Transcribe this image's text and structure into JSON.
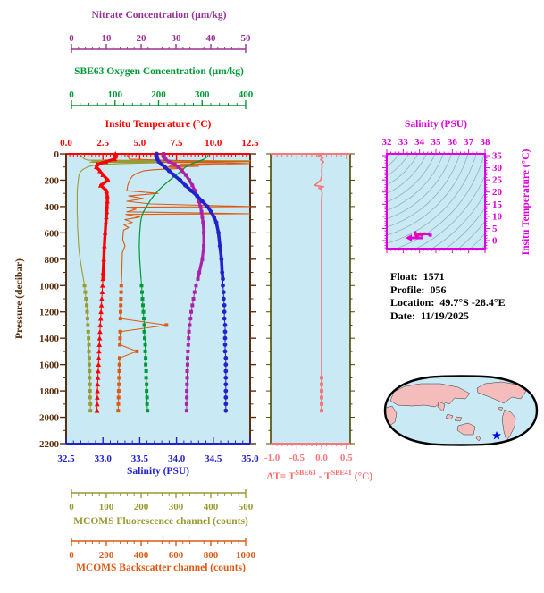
{
  "info": {
    "float_label": "Float:",
    "float_value": "1571",
    "profile_label": "Profile:",
    "profile_value": "056",
    "location_label": "Location:",
    "location_value": "49.7°S  -28.4°E",
    "date_label": "Date:",
    "date_value": "11/19/2025"
  },
  "colors": {
    "plot_bg": "#C9E9F5",
    "nitrate": "#993399",
    "oxygen": "#009933",
    "temperature": "#FF0000",
    "pressure": "#5A2D0C",
    "salinity": "#2222CC",
    "fluorescence": "#9A9A33",
    "backscatter": "#DC5A14",
    "delta_t": "#F87878",
    "delta_t_frame": "#4B4B00",
    "ts_magenta": "#DD00DD",
    "ts_contour": "#8FA8B0",
    "ts_curve": "#FF0000",
    "map_land": "#F5BCBC",
    "map_ocean": "#C9E9F5",
    "map_outline": "#000000",
    "star": "#0000EE"
  },
  "axes": {
    "nitrate": {
      "title": "Nitrate Concentration (µm/kg)",
      "ticks": [
        "0",
        "10",
        "20",
        "30",
        "40",
        "50"
      ],
      "range": [
        0,
        50
      ]
    },
    "oxygen": {
      "title": "SBE63 Oxygen Concentration (µm/kg)",
      "ticks": [
        "0",
        "100",
        "200",
        "300",
        "400"
      ],
      "range": [
        0,
        400
      ]
    },
    "temperature": {
      "title": "Insitu Temperature (°C)",
      "ticks": [
        "0.0",
        "2.5",
        "5.0",
        "7.5",
        "10.0",
        "12.5"
      ],
      "range": [
        0,
        12.5
      ]
    },
    "pressure": {
      "title": "Pressure (decibar)",
      "ticks": [
        "0",
        "200",
        "400",
        "600",
        "800",
        "1000",
        "1200",
        "1400",
        "1600",
        "1800",
        "2000",
        "2200"
      ],
      "range": [
        0,
        2200
      ]
    },
    "salinity": {
      "title": "Salinity (PSU)",
      "ticks": [
        "32.5",
        "33.0",
        "33.5",
        "34.0",
        "34.5",
        "35.0"
      ],
      "range": [
        32.5,
        35.0
      ]
    },
    "fluorescence": {
      "title": "MCOMS Fluorescence channel (counts)",
      "ticks": [
        "0",
        "100",
        "200",
        "300",
        "400",
        "500"
      ],
      "range": [
        0,
        500
      ]
    },
    "backscatter": {
      "title": "MCOMS Backscatter channel (counts)",
      "ticks": [
        "0",
        "200",
        "400",
        "600",
        "800",
        "1000"
      ],
      "range": [
        0,
        1000
      ]
    },
    "delta_t": {
      "t1": "ΔT= T",
      "sup1": "SBE63",
      "t2": " - T",
      "sup2": "SBE41",
      "t3": " (°C)",
      "ticks": [
        "-1.0",
        "-0.5",
        "0.0",
        "0.5"
      ],
      "tick_values": [
        -1.0,
        -0.5,
        0.0,
        0.5
      ],
      "range": [
        -1.03,
        0.58
      ]
    },
    "ts_salinity": {
      "title": "Salinity (PSU)",
      "ticks": [
        "32",
        "33",
        "34",
        "35",
        "36",
        "37",
        "38"
      ],
      "range": [
        32,
        38
      ]
    },
    "ts_temperature": {
      "title": "Insitu Temperature (°C)",
      "ticks": [
        "0",
        "5",
        "10",
        "15",
        "20",
        "25",
        "30",
        "35"
      ],
      "range": [
        0,
        35
      ]
    }
  },
  "chart_data": [
    {
      "type": "line",
      "id": "main-profile-plot",
      "y_axis": {
        "label": "Pressure (decibar)",
        "range": [
          0,
          2200
        ],
        "inverted": true,
        "grid": false
      },
      "legend_position": "none",
      "pressure": [
        0,
        20,
        40,
        60,
        80,
        100,
        130,
        160,
        200,
        240,
        280,
        320,
        360,
        400,
        440,
        480,
        520,
        600,
        700,
        800,
        900,
        950,
        1000,
        1050,
        1100,
        1150,
        1200,
        1250,
        1300,
        1350,
        1400,
        1450,
        1500,
        1550,
        1600,
        1650,
        1700,
        1750,
        1800,
        1850,
        1900,
        1950
      ],
      "series": [
        {
          "name": "insitu_temperature",
          "units": "°C",
          "x_range": [
            0,
            12.5
          ],
          "values": [
            3.35,
            3.35,
            3.3,
            2.7,
            2.1,
            2.05,
            2.3,
            2.5,
            2.85,
            2.35,
            2.75,
            2.8,
            2.8,
            2.78,
            2.76,
            2.73,
            2.7,
            2.65,
            2.6,
            2.56,
            2.52,
            2.5,
            2.47,
            2.45,
            2.42,
            2.4,
            2.37,
            2.35,
            2.32,
            2.3,
            2.28,
            2.26,
            2.24,
            2.22,
            2.2,
            2.18,
            2.16,
            2.14,
            2.13,
            2.12,
            2.11,
            2.1
          ]
        },
        {
          "name": "salinity",
          "units": "PSU",
          "x_range": [
            32.5,
            35.0
          ],
          "values": [
            33.73,
            33.73,
            33.74,
            33.76,
            33.8,
            33.84,
            33.9,
            33.96,
            34.05,
            34.12,
            34.2,
            34.28,
            34.35,
            34.42,
            34.47,
            34.51,
            34.54,
            34.57,
            34.59,
            34.61,
            34.62,
            34.63,
            34.63,
            34.64,
            34.64,
            34.65,
            34.65,
            34.65,
            34.66,
            34.66,
            34.66,
            34.66,
            34.66,
            34.67,
            34.67,
            34.67,
            34.67,
            34.67,
            34.67,
            34.67,
            34.67,
            34.67
          ]
        },
        {
          "name": "nitrate",
          "units": "µm/kg",
          "x_range": [
            0,
            50
          ],
          "values": [
            26.5,
            26.5,
            27.0,
            28.0,
            29.5,
            30.5,
            31.5,
            32.5,
            33.5,
            34.3,
            35.0,
            35.6,
            36.1,
            36.5,
            36.8,
            37.0,
            37.2,
            37.4,
            37.4,
            37.0,
            36.2,
            35.8,
            35.3,
            34.9,
            34.6,
            34.3,
            34.0,
            33.8,
            33.6,
            33.4,
            33.3,
            33.2,
            33.1,
            33.0,
            33.0,
            32.9,
            32.9,
            32.85,
            32.8,
            32.8,
            32.75,
            32.75
          ]
        },
        {
          "name": "sbe63_oxygen",
          "units": "µm/kg",
          "x_range": [
            0,
            400
          ],
          "values": [
            309,
            308,
            300,
            285,
            270,
            260,
            250,
            240,
            225,
            212,
            200,
            190,
            182,
            175,
            168,
            164,
            162,
            160,
            159,
            160,
            162,
            163,
            164,
            165,
            166,
            167,
            168,
            169,
            170,
            170,
            171,
            172,
            172,
            173,
            173,
            174,
            174,
            175,
            175,
            176,
            176,
            177
          ]
        }
      ],
      "extra_series": [
        {
          "name": "mcoms_fluorescence",
          "units": "counts",
          "x_range": [
            0,
            500
          ],
          "pressure": [
            0,
            20,
            40,
            48,
            52,
            56,
            60,
            64,
            68,
            75,
            80,
            90,
            100,
            120,
            140,
            160,
            200,
            250,
            300,
            350,
            400,
            450,
            500,
            550,
            600,
            650,
            700,
            750,
            800,
            850,
            900,
            950,
            1000,
            1050,
            1100,
            1150,
            1200,
            1250,
            1300,
            1350,
            1400,
            1450,
            1500,
            1550,
            1600,
            1650,
            1700,
            1750,
            1800,
            1850,
            1900,
            1950
          ],
          "values": [
            40,
            42,
            50,
            60,
            510,
            70,
            490,
            65,
            250,
            150,
            90,
            70,
            58,
            45,
            38,
            35,
            33,
            31,
            30,
            30,
            30,
            30,
            31,
            31,
            32,
            33,
            34,
            36,
            38,
            41,
            44,
            47,
            50,
            52,
            54,
            56,
            57,
            58,
            59,
            60,
            61,
            62,
            62,
            63,
            63,
            64,
            64,
            65,
            65,
            65,
            66,
            66
          ]
        },
        {
          "name": "mcoms_backscatter",
          "units": "counts",
          "x_range": [
            0,
            1000
          ],
          "pressure": [
            0,
            20,
            40,
            55,
            60,
            65,
            70,
            75,
            80,
            85,
            90,
            95,
            100,
            110,
            120,
            130,
            150,
            170,
            200,
            240,
            280,
            300,
            320,
            340,
            360,
            380,
            400,
            405,
            420,
            440,
            455,
            460,
            480,
            500,
            520,
            540,
            560,
            580,
            600,
            650,
            700,
            750,
            800,
            850,
            900,
            950,
            1000,
            1050,
            1100,
            1150,
            1200,
            1250,
            1300,
            1350,
            1400,
            1450,
            1500,
            1550,
            1600,
            1650,
            1700,
            1750,
            1800,
            1850,
            1900,
            1950
          ],
          "values": [
            330,
            335,
            345,
            700,
            1000,
            520,
            900,
            1000,
            620,
            800,
            560,
            720,
            540,
            640,
            480,
            420,
            380,
            360,
            345,
            335,
            330,
            500,
            340,
            420,
            330,
            460,
            1000,
            330,
            380,
            330,
            1000,
            325,
            400,
            320,
            360,
            315,
            340,
            312,
            310,
            308,
            320,
            306,
            305,
            304,
            303,
            302,
            300,
            299,
            298,
            297,
            296,
            295,
            545,
            294,
            293,
            292,
            385,
            291,
            290,
            289,
            288,
            287,
            286,
            285,
            284,
            283
          ]
        }
      ]
    },
    {
      "type": "line",
      "id": "delta-t-plot",
      "x_axis": {
        "label": "ΔT= T^SBE63 - T^SBE41 (°C)",
        "range": [
          -1.03,
          0.58
        ]
      },
      "y_axis": {
        "label": "Pressure (decibar)",
        "range": [
          0,
          2200
        ],
        "inverted": true
      },
      "pressure": [
        0,
        15,
        30,
        45,
        60,
        80,
        100,
        130,
        160,
        200,
        240,
        250,
        260,
        270,
        300,
        350,
        400,
        500,
        600,
        700,
        800,
        900,
        1000,
        1100,
        1200,
        1300,
        1400,
        1500,
        1600,
        1700,
        1750,
        1800,
        1850,
        1900,
        1950
      ],
      "values": [
        0.05,
        -0.07,
        0.03,
        -0.02,
        0.04,
        0.0,
        0.01,
        0.0,
        0.01,
        -0.02,
        -0.14,
        0.04,
        -0.06,
        0.0,
        0.01,
        0.0,
        0.0,
        0.0,
        0.0,
        0.0,
        0.0,
        0.0,
        0.0,
        0.0,
        0.0,
        0.0,
        0.0,
        0.0,
        0.0,
        0.0,
        0.0,
        0.0,
        0.0,
        0.0,
        0.0
      ]
    },
    {
      "type": "line",
      "id": "ts-diagram",
      "x_axis": {
        "label": "Salinity (PSU)",
        "range": [
          32,
          38
        ]
      },
      "y_axis": {
        "label": "Insitu Temperature (°C)",
        "range": [
          0,
          35
        ]
      },
      "note": "T-S curve derived from salinity and insitu_temperature series of main-profile-plot; background shows density isopycnal contours; magenta arrow marks surface end of curve"
    }
  ]
}
